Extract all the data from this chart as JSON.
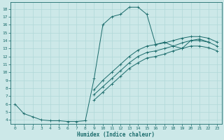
{
  "xlabel": "Humidex (Indice chaleur)",
  "xlim": [
    -0.5,
    23.5
  ],
  "ylim": [
    3.5,
    18.8
  ],
  "xticks": [
    0,
    1,
    2,
    3,
    4,
    5,
    6,
    7,
    8,
    9,
    10,
    11,
    12,
    13,
    14,
    15,
    16,
    17,
    18,
    19,
    20,
    21,
    22,
    23
  ],
  "yticks": [
    4,
    5,
    6,
    7,
    8,
    9,
    10,
    11,
    12,
    13,
    14,
    15,
    16,
    17,
    18
  ],
  "bg_color": "#cce8e8",
  "line_color": "#1a6b6b",
  "grid_color": "#b0d8d8",
  "line1_x": [
    0,
    1,
    2,
    3,
    4,
    5,
    6,
    7,
    8,
    9,
    10,
    11,
    12,
    13,
    14,
    15,
    16,
    17,
    18,
    19,
    20,
    21,
    22
  ],
  "line1_y": [
    6.0,
    4.8,
    4.4,
    4.0,
    3.9,
    3.9,
    3.8,
    3.8,
    3.9,
    9.2,
    16.0,
    17.0,
    17.3,
    18.2,
    18.2,
    17.3,
    13.5,
    13.8,
    13.3,
    13.0,
    14.0,
    14.2,
    13.8
  ],
  "line2_x": [
    9,
    10,
    11,
    12,
    13,
    14,
    15,
    16,
    17,
    18,
    19,
    20,
    21,
    22,
    23
  ],
  "line2_y": [
    7.8,
    9.0,
    10.0,
    11.0,
    12.0,
    12.8,
    13.3,
    13.5,
    13.7,
    14.0,
    14.3,
    14.5,
    14.5,
    14.3,
    13.8
  ],
  "line3_x": [
    9,
    10,
    11,
    12,
    13,
    14,
    15,
    16,
    17,
    18,
    19,
    20,
    21,
    22,
    23
  ],
  "line3_y": [
    7.2,
    8.2,
    9.2,
    10.2,
    11.2,
    12.0,
    12.5,
    12.7,
    13.0,
    13.3,
    13.7,
    14.0,
    14.0,
    13.8,
    13.3
  ],
  "line4_x": [
    9,
    10,
    11,
    12,
    13,
    14,
    15,
    16,
    17,
    18,
    19,
    20,
    21,
    22,
    23
  ],
  "line4_y": [
    6.5,
    7.5,
    8.5,
    9.5,
    10.5,
    11.2,
    11.8,
    12.0,
    12.3,
    12.7,
    13.0,
    13.3,
    13.3,
    13.1,
    12.7
  ],
  "tick_fontsize": 4.5,
  "xlabel_fontsize": 5.5,
  "linewidth": 0.7,
  "markersize": 2.5
}
